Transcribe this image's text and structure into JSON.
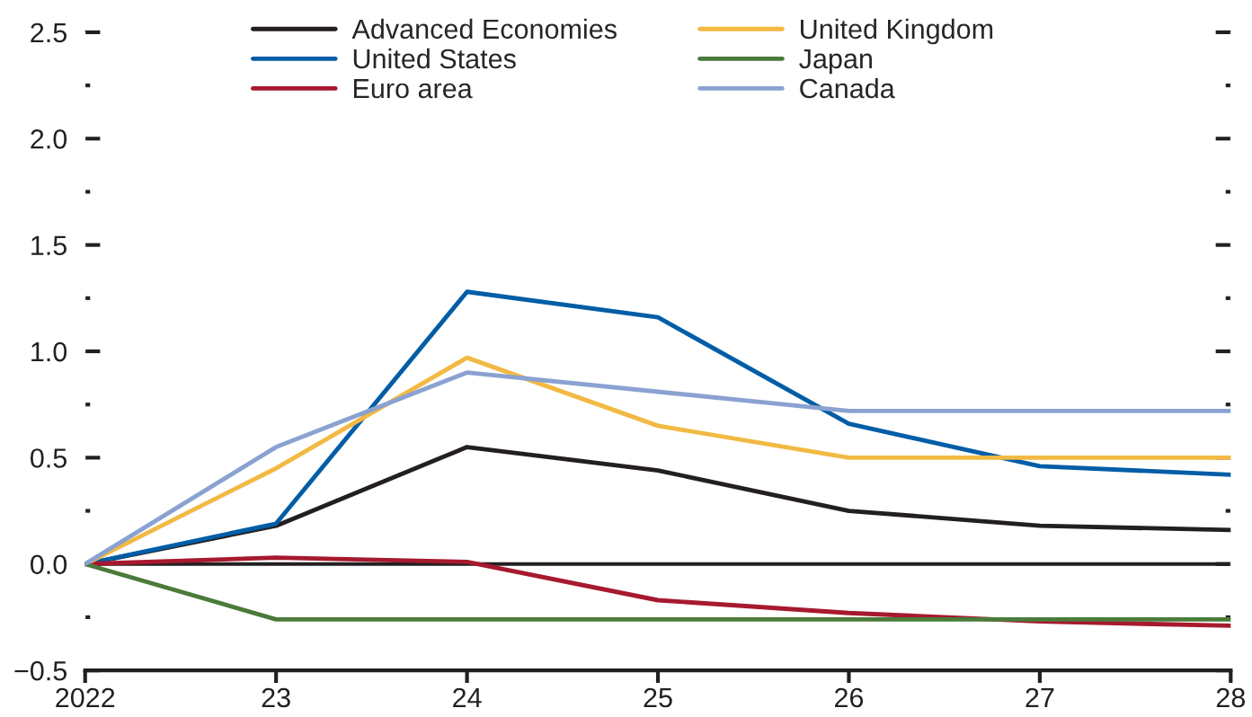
{
  "chart_data": {
    "type": "line",
    "x": [
      2022,
      2023,
      2024,
      2025,
      2026,
      2027,
      2028
    ],
    "series": [
      {
        "name": "Advanced Economies",
        "color": "#231f20",
        "values": [
          0,
          0.18,
          0.55,
          0.44,
          0.25,
          0.18,
          0.16
        ]
      },
      {
        "name": "United States",
        "color": "#005da6",
        "values": [
          0,
          0.19,
          1.28,
          1.16,
          0.66,
          0.46,
          0.42
        ]
      },
      {
        "name": "Euro area",
        "color": "#a6192e",
        "values": [
          0,
          0.03,
          0.01,
          -0.17,
          -0.23,
          -0.27,
          -0.29
        ]
      },
      {
        "name": "United Kingdom",
        "color": "#f2b943",
        "values": [
          0,
          0.45,
          0.97,
          0.65,
          0.5,
          0.5,
          0.5
        ]
      },
      {
        "name": "Japan",
        "color": "#4a7b3a",
        "values": [
          0,
          -0.26,
          -0.26,
          -0.26,
          -0.26,
          -0.26,
          -0.26
        ]
      },
      {
        "name": "Canada",
        "color": "#8aa2d1",
        "values": [
          0,
          0.55,
          0.9,
          0.81,
          0.72,
          0.72,
          0.72
        ]
      }
    ],
    "xlim": [
      2022,
      2028
    ],
    "xticks": [
      {
        "value": 2022,
        "label": "2022"
      },
      {
        "value": 2023,
        "label": "23"
      },
      {
        "value": 2024,
        "label": "24"
      },
      {
        "value": 2025,
        "label": "25"
      },
      {
        "value": 2026,
        "label": "26"
      },
      {
        "value": 2027,
        "label": "27"
      },
      {
        "value": 2028,
        "label": "28"
      }
    ],
    "ylim": [
      -0.5,
      2.5
    ],
    "yticks": [
      {
        "value": -0.5,
        "label": "−0.5"
      },
      {
        "value": -0.25,
        "label": null
      },
      {
        "value": 0,
        "label": "0.0"
      },
      {
        "value": 0.25,
        "label": null
      },
      {
        "value": 0.5,
        "label": "0.5"
      },
      {
        "value": 0.75,
        "label": null
      },
      {
        "value": 1,
        "label": "1.0"
      },
      {
        "value": 1.25,
        "label": null
      },
      {
        "value": 1.5,
        "label": "1.5"
      },
      {
        "value": 1.75,
        "label": null
      },
      {
        "value": 2,
        "label": "2.0"
      },
      {
        "value": 2.25,
        "label": null
      },
      {
        "value": 2.5,
        "label": "2.5"
      }
    ],
    "ref_lines": [
      {
        "axis": "y",
        "value": 0,
        "color": "#231f20"
      }
    ],
    "grid": false,
    "legend": "top",
    "line_style": "solid",
    "marker": "none"
  }
}
